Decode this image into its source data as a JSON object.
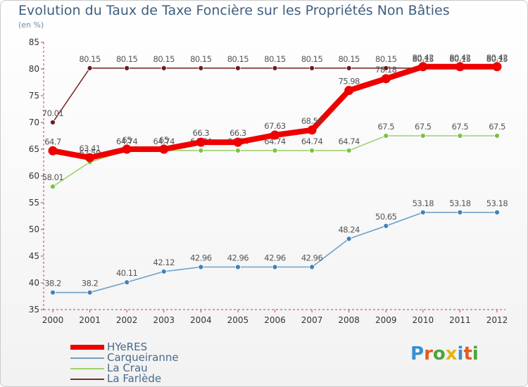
{
  "title": "Evolution du Taux de Taxe Foncière sur les Propriétés Non Bâties",
  "unit_label": "(en %)",
  "logo": {
    "text": "Proxiti",
    "letter_colors": [
      "#3a8fd0",
      "#e45a22",
      "#4aa53a",
      "#e9b314",
      "#3a8fd0",
      "#e45a22",
      "#4aa53a"
    ]
  },
  "chart_data": {
    "type": "line",
    "title": "Evolution du Taux de Taxe Foncière sur les Propriétés Non Bâties",
    "ylabel": "(en %)",
    "xlabel": "",
    "ylim": [
      35,
      85
    ],
    "yticks": [
      35,
      40,
      45,
      50,
      55,
      60,
      65,
      70,
      75,
      80,
      85
    ],
    "grid": false,
    "legend_position": "bottom-left",
    "categories": [
      "2000",
      "2001",
      "2002",
      "2003",
      "2004",
      "2005",
      "2006",
      "2007",
      "2008",
      "2009",
      "2010",
      "2011",
      "2012"
    ],
    "series": [
      {
        "name": "La Farlède",
        "color": "#7a2e2e",
        "marker_color": "#6a1d1d",
        "values": [
          70.01,
          80.15,
          80.15,
          80.15,
          80.15,
          80.15,
          80.15,
          80.15,
          80.15,
          80.15,
          80.15,
          80.15,
          80.15
        ],
        "labels": [
          "70.01",
          "80.15",
          "80.15",
          "80.15",
          "80.15",
          "80.15",
          "80.15",
          "80.15",
          "80.15",
          "80.15",
          "80.15",
          "80.15",
          "80.15"
        ]
      },
      {
        "name": "La Crau",
        "color": "#9ed16e",
        "marker_color": "#7cc242",
        "values": [
          58.01,
          62.59,
          64.74,
          64.74,
          64.74,
          64.74,
          64.74,
          64.74,
          64.74,
          67.5,
          67.5,
          67.5,
          67.5
        ],
        "labels": [
          "58.01",
          "62.59",
          "64.74",
          "64.74",
          "64.74",
          "64.74",
          "64.74",
          "64.74",
          "64.74",
          "67.5",
          "67.5",
          "67.5",
          "67.5"
        ]
      },
      {
        "name": "Carqueiranne",
        "color": "#6fa0c8",
        "marker_color": "#3f82bd",
        "values": [
          38.2,
          38.2,
          40.11,
          42.12,
          42.96,
          42.96,
          42.96,
          42.96,
          48.24,
          50.65,
          53.18,
          53.18,
          53.18
        ],
        "labels": [
          "38.2",
          "38.2",
          "40.11",
          "42.12",
          "42.96",
          "42.96",
          "42.96",
          "42.96",
          "48.24",
          "50.65",
          "53.18",
          "53.18",
          "53.18"
        ]
      },
      {
        "name": "HYeRES",
        "color": "#ee0000",
        "marker_color": "#ee0000",
        "values": [
          64.7,
          63.41,
          65,
          65,
          66.3,
          66.3,
          67.63,
          68.58,
          75.98,
          78.18,
          80.42,
          80.42,
          80.42
        ],
        "labels": [
          "64.7",
          "63.41",
          "65",
          "65",
          "66.3",
          "66.3",
          "67.63",
          "68.58",
          "75.98",
          "78.18",
          "80.42",
          "80.42",
          "80.42"
        ]
      }
    ],
    "legend": [
      "HYeRES",
      "Carqueiranne",
      "La Crau",
      "La Farlède"
    ]
  }
}
